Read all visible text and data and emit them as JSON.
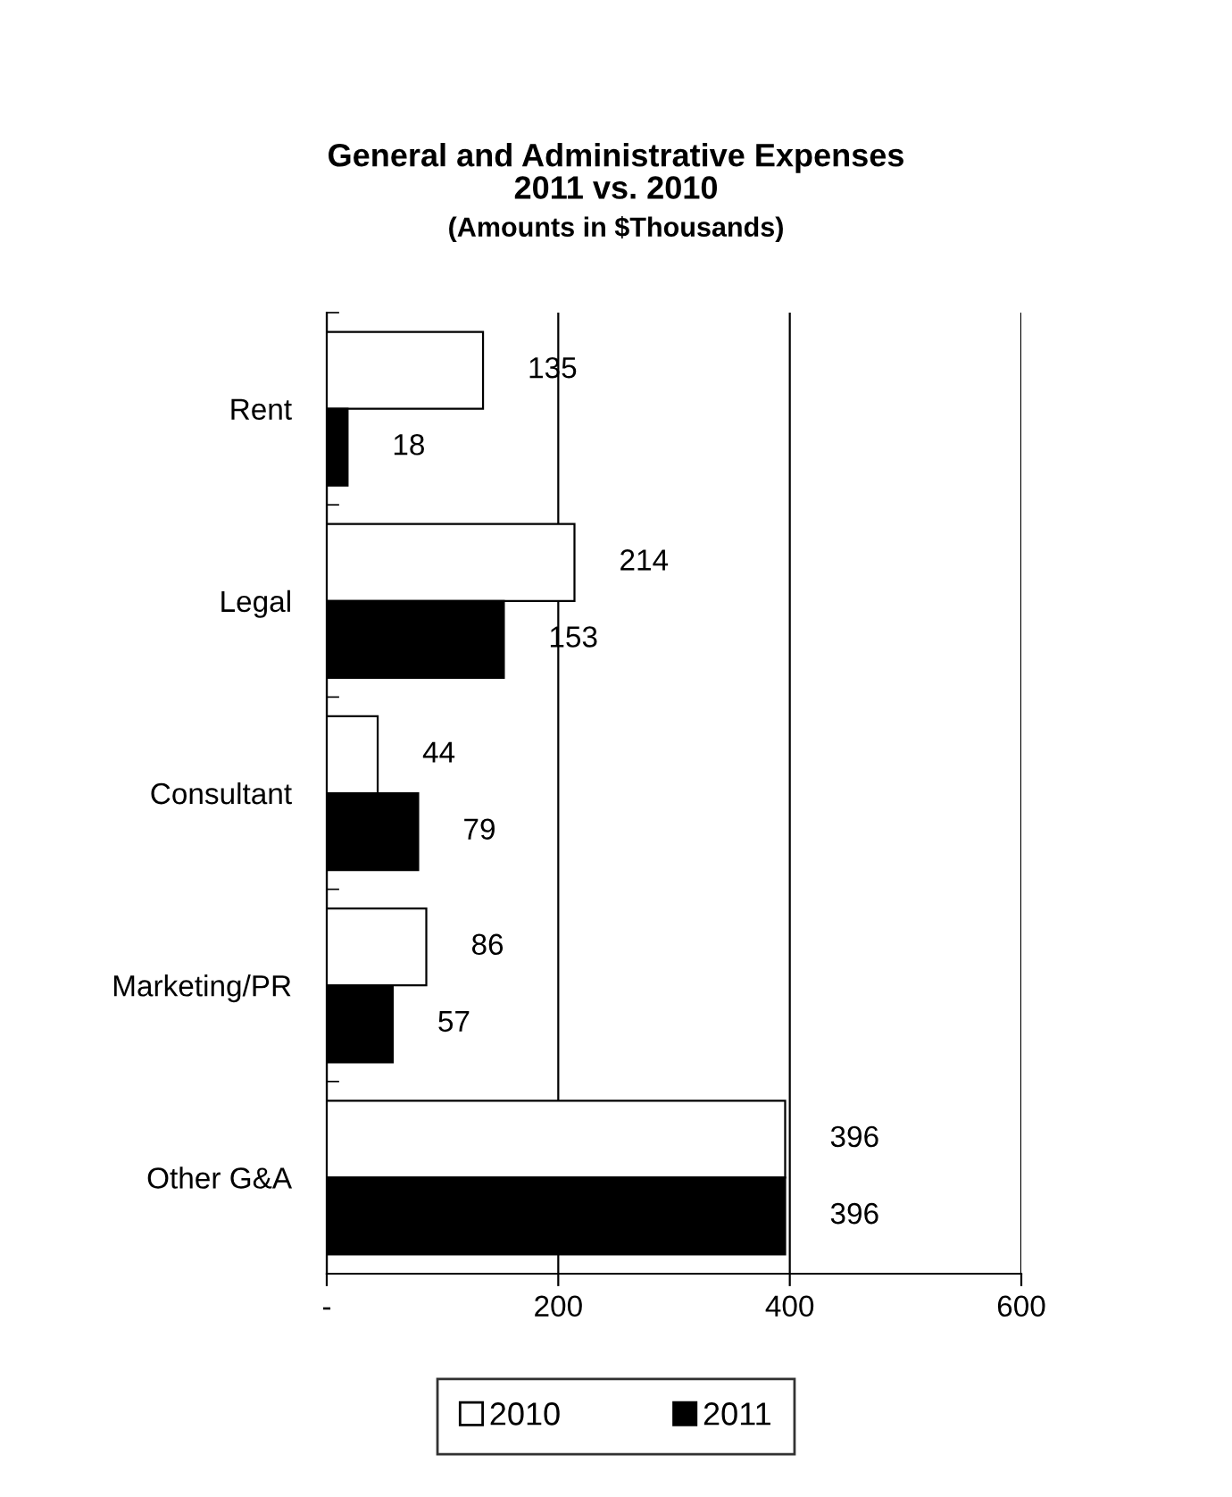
{
  "chart_data": {
    "type": "bar",
    "orientation": "horizontal",
    "title": "General and Administrative Expenses\n2011 vs. 2010",
    "subtitle": "(Amounts in $Thousands)",
    "categories": [
      "Rent",
      "Legal",
      "Consultant",
      "Marketing/PR",
      "Other G&A"
    ],
    "series": [
      {
        "name": "2010",
        "color": "#ffffff",
        "values": [
          135,
          214,
          44,
          86,
          396
        ]
      },
      {
        "name": "2011",
        "color": "#000000",
        "values": [
          18,
          153,
          79,
          57,
          396
        ]
      }
    ],
    "xlim": [
      0,
      600
    ],
    "xticks": [
      {
        "value": 0,
        "label": "-"
      },
      200,
      400,
      600
    ],
    "grid": "x",
    "legend": "bottom",
    "data_labels": true
  }
}
